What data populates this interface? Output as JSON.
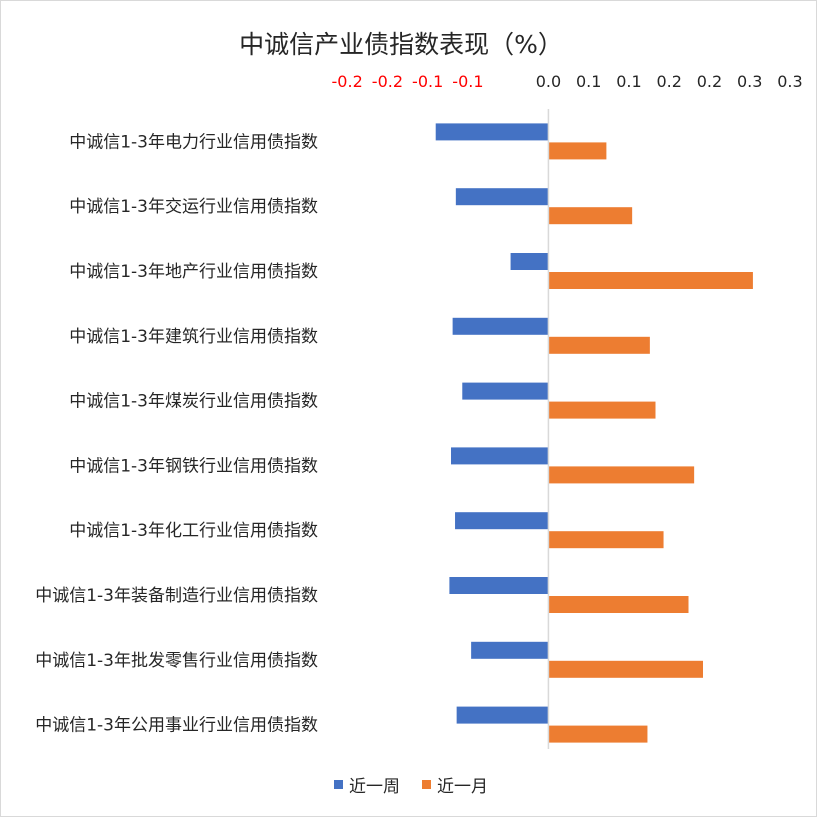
{
  "chart_data": {
    "type": "bar",
    "orientation": "horizontal",
    "title": "中诚信产业债指数表现（%）",
    "xlabel": "",
    "ylabel": "",
    "x_axis_position": "top",
    "xlim": [
      -0.28,
      0.31
    ],
    "x_tick_values": [
      -0.25,
      -0.2,
      -0.15,
      -0.1,
      0.0,
      0.05,
      0.1,
      0.15,
      0.2,
      0.25,
      0.3
    ],
    "x_tick_labels": [
      "-0.2",
      "-0.2",
      "-0.1",
      "-0.1",
      "0.0",
      "0.1",
      "0.1",
      "0.2",
      "0.2",
      "0.3",
      "0.3"
    ],
    "negative_tick_color": "#ff0000",
    "positive_tick_color": "#262626",
    "grid": false,
    "legend_position": "bottom",
    "categories": [
      "中诚信1-3年电力行业信用债指数",
      "中诚信1-3年交运行业信用债指数",
      "中诚信1-3年地产行业信用债指数",
      "中诚信1-3年建筑行业信用债指数",
      "中诚信1-3年煤炭行业信用债指数",
      "中诚信1-3年钢铁行业信用债指数",
      "中诚信1-3年化工行业信用债指数",
      "中诚信1-3年装备制造行业信用债指数",
      "中诚信1-3年批发零售行业信用债指数",
      "中诚信1-3年公用事业行业信用债指数"
    ],
    "series": [
      {
        "name": "近一周",
        "color": "#4472c4",
        "values": [
          -0.14,
          -0.115,
          -0.047,
          -0.119,
          -0.107,
          -0.121,
          -0.116,
          -0.123,
          -0.096,
          -0.114
        ]
      },
      {
        "name": "近一月",
        "color": "#ed7d31",
        "values": [
          0.072,
          0.104,
          0.254,
          0.126,
          0.133,
          0.181,
          0.143,
          0.174,
          0.192,
          0.123
        ]
      }
    ]
  }
}
